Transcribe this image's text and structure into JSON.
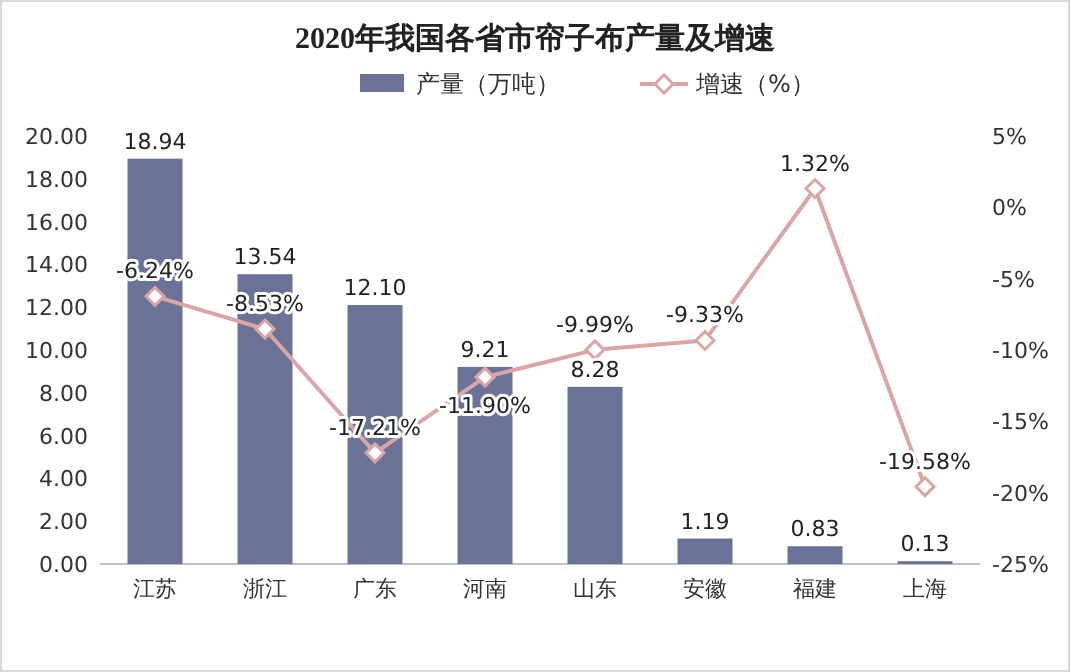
{
  "chart_data": {
    "type": "bar",
    "title": "2020年我国各省市帘子布产量及增速",
    "categories": [
      "江苏",
      "浙江",
      "广东",
      "河南",
      "山东",
      "安徽",
      "福建",
      "上海"
    ],
    "series": [
      {
        "name": "产量（万吨）",
        "color": "#6a7397",
        "values": [
          18.94,
          13.54,
          12.1,
          9.21,
          8.28,
          1.19,
          0.83,
          0.13
        ],
        "value_labels": [
          "18.94",
          "13.54",
          "12.10",
          "9.21",
          "8.28",
          "1.19",
          "0.83",
          "0.13"
        ]
      },
      {
        "name": "增速（%）",
        "type": "line",
        "axis": "y2",
        "color": "#dba5a5",
        "marker": "diamond",
        "line_style": "solid",
        "values": [
          -6.24,
          -8.53,
          -17.21,
          -11.9,
          -9.99,
          -9.33,
          1.32,
          -19.58
        ],
        "value_labels": [
          "-6.24%",
          "-8.53%",
          "-17.21%",
          "-11.90%",
          "-9.99%",
          "-9.33%",
          "1.32%",
          "-19.58%"
        ]
      }
    ],
    "ylim": [
      0,
      20
    ],
    "yticks": [
      {
        "value": 0,
        "label": "0.00"
      },
      {
        "value": 2,
        "label": "2.00"
      },
      {
        "value": 4,
        "label": "4.00"
      },
      {
        "value": 6,
        "label": "6.00"
      },
      {
        "value": 8,
        "label": "8.00"
      },
      {
        "value": 10,
        "label": "10.00"
      },
      {
        "value": 12,
        "label": "12.00"
      },
      {
        "value": 14,
        "label": "14.00"
      },
      {
        "value": 16,
        "label": "16.00"
      },
      {
        "value": 18,
        "label": "18.00"
      },
      {
        "value": 20,
        "label": "20.00"
      }
    ],
    "y2lim": [
      -25,
      5
    ],
    "y2ticks": [
      {
        "value": -25,
        "label": "-25%"
      },
      {
        "value": -20,
        "label": "-20%"
      },
      {
        "value": -15,
        "label": "-15%"
      },
      {
        "value": -10,
        "label": "-10%"
      },
      {
        "value": -5,
        "label": "-5%"
      },
      {
        "value": 0,
        "label": "0%"
      },
      {
        "value": 5,
        "label": "5%"
      }
    ],
    "legend": "top"
  }
}
